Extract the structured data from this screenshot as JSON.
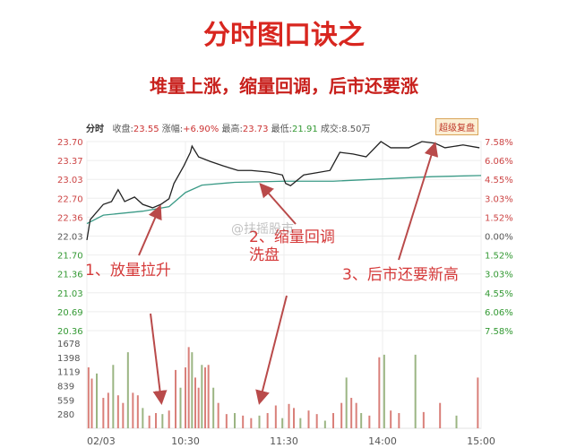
{
  "title": "分时图口诀之",
  "subtitle": "堆量上涨，缩量回调，后市还要涨",
  "header": {
    "mode": "分时",
    "close_label": "收盘",
    "close": "23.55",
    "change_label": "涨幅",
    "change": "+6.90%",
    "high_label": "最高",
    "high": "23.73",
    "low_label": "最低",
    "low": "21.91",
    "volume_label": "成交",
    "volume": "8.50万",
    "button": "超级复盘"
  },
  "annotations": [
    "1、放量拉升",
    "2、缩量回调",
    "洗盘",
    "3、后市还要新高"
  ],
  "watermark": "@扶摇股市",
  "colors": {
    "price": "#222222",
    "avg": "#3a9a86",
    "up": "#d9807a",
    "down": "#9bb583",
    "arrow": "#b94a4a",
    "text_red": "#d53a3a"
  },
  "chart_data": {
    "type": "line",
    "price_ticks": [
      "23.70",
      "23.37",
      "23.03",
      "22.70",
      "22.36",
      "22.03",
      "21.70",
      "21.36",
      "21.03",
      "20.69",
      "20.36"
    ],
    "pct_ticks": [
      "7.58%",
      "6.06%",
      "4.55%",
      "3.03%",
      "1.52%",
      "0.00%",
      "1.52%",
      "3.03%",
      "4.55%",
      "6.06%",
      "7.58%"
    ],
    "volume_ticks": [
      "1678",
      "1398",
      "1119",
      "839",
      "559",
      "280"
    ],
    "x_ticks": [
      "02/03",
      "10:30",
      "11:30",
      "14:00",
      "15:00"
    ],
    "ylim": [
      20.36,
      23.7
    ],
    "volume_max": 1678,
    "price": [
      [
        "09:30",
        21.96
      ],
      [
        "09:32",
        22.32
      ],
      [
        "09:40",
        22.59
      ],
      [
        "09:45",
        22.64
      ],
      [
        "09:49",
        22.85
      ],
      [
        "09:53",
        22.64
      ],
      [
        "09:59",
        22.72
      ],
      [
        "10:04",
        22.59
      ],
      [
        "10:10",
        22.53
      ],
      [
        "10:15",
        22.59
      ],
      [
        "10:20",
        22.69
      ],
      [
        "10:23",
        22.96
      ],
      [
        "10:29",
        23.27
      ],
      [
        "10:33",
        23.51
      ],
      [
        "10:34",
        23.62
      ],
      [
        "10:38",
        23.43
      ],
      [
        "10:45",
        23.35
      ],
      [
        "10:53",
        23.27
      ],
      [
        "11:02",
        23.19
      ],
      [
        "11:10",
        23.19
      ],
      [
        "11:21",
        23.16
      ],
      [
        "11:29",
        23.11
      ],
      [
        "13:01",
        22.96
      ],
      [
        "13:04",
        22.92
      ],
      [
        "13:12",
        23.11
      ],
      [
        "13:20",
        23.15
      ],
      [
        "13:28",
        23.19
      ],
      [
        "13:34",
        23.51
      ],
      [
        "13:42",
        23.48
      ],
      [
        "13:50",
        23.43
      ],
      [
        "13:59",
        23.7
      ],
      [
        "14:05",
        23.59
      ],
      [
        "14:16",
        23.59
      ],
      [
        "14:24",
        23.7
      ],
      [
        "14:32",
        23.67
      ],
      [
        "14:38",
        23.59
      ],
      [
        "14:49",
        23.64
      ],
      [
        "14:59",
        23.59
      ]
    ],
    "avg_price": [
      [
        "09:30",
        22.25
      ],
      [
        "09:40",
        22.4
      ],
      [
        "10:04",
        22.47
      ],
      [
        "10:20",
        22.55
      ],
      [
        "10:30",
        22.8
      ],
      [
        "10:40",
        22.93
      ],
      [
        "11:00",
        22.98
      ],
      [
        "11:30",
        23.0
      ],
      [
        "13:30",
        23.0
      ],
      [
        "14:00",
        23.04
      ],
      [
        "14:30",
        23.08
      ],
      [
        "15:00",
        23.1
      ]
    ],
    "volume": [
      [
        "09:31",
        1200
      ],
      [
        "09:33",
        980
      ],
      [
        "09:36",
        1080
      ],
      [
        "09:40",
        600
      ],
      [
        "09:43",
        700
      ],
      [
        "09:46",
        1250
      ],
      [
        "09:49",
        650
      ],
      [
        "09:52",
        500
      ],
      [
        "09:55",
        1500
      ],
      [
        "09:58",
        700
      ],
      [
        "10:01",
        650
      ],
      [
        "10:04",
        400
      ],
      [
        "10:08",
        250
      ],
      [
        "10:12",
        300
      ],
      [
        "10:16",
        280
      ],
      [
        "10:20",
        350
      ],
      [
        "10:24",
        1150
      ],
      [
        "10:27",
        800
      ],
      [
        "10:30",
        1200
      ],
      [
        "10:32",
        1600
      ],
      [
        "10:34",
        1500
      ],
      [
        "10:36",
        1000
      ],
      [
        "10:38",
        800
      ],
      [
        "10:40",
        1250
      ],
      [
        "10:42",
        1200
      ],
      [
        "10:44",
        1250
      ],
      [
        "10:47",
        800
      ],
      [
        "10:50",
        500
      ],
      [
        "10:55",
        280
      ],
      [
        "11:00",
        300
      ],
      [
        "11:05",
        250
      ],
      [
        "11:10",
        200
      ],
      [
        "11:15",
        250
      ],
      [
        "11:20",
        300
      ],
      [
        "11:25",
        450
      ],
      [
        "11:29",
        200
      ],
      [
        "13:03",
        480
      ],
      [
        "13:06",
        400
      ],
      [
        "13:10",
        200
      ],
      [
        "13:15",
        350
      ],
      [
        "13:20",
        280
      ],
      [
        "13:25",
        150
      ],
      [
        "13:30",
        300
      ],
      [
        "13:35",
        500
      ],
      [
        "13:38",
        1000
      ],
      [
        "13:41",
        600
      ],
      [
        "13:44",
        500
      ],
      [
        "13:47",
        300
      ],
      [
        "13:52",
        250
      ],
      [
        "13:58",
        1400
      ],
      [
        "14:01",
        1450
      ],
      [
        "14:05",
        350
      ],
      [
        "14:10",
        300
      ],
      [
        "14:20",
        1450
      ],
      [
        "14:25",
        320
      ],
      [
        "14:35",
        500
      ],
      [
        "14:45",
        250
      ],
      [
        "14:58",
        1000
      ]
    ]
  }
}
